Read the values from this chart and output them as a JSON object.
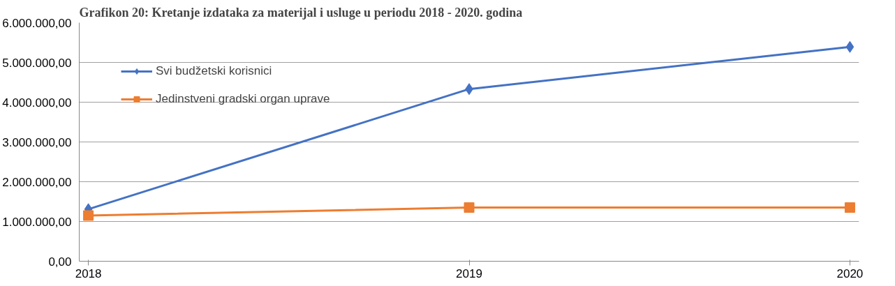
{
  "chart_data": {
    "type": "line",
    "title": "Grafikon 20: Kretanje izdataka za materijal i usluge u periodu 2018 - 2020. godina",
    "categories": [
      "2018",
      "2019",
      "2020"
    ],
    "series": [
      {
        "name": "Svi budžetski korisnici",
        "color": "#4472c4",
        "marker": "diamond",
        "values": [
          1310000,
          4330000,
          5390000
        ]
      },
      {
        "name": "Jedinstveni gradski organ uprave",
        "color": "#ed7d31",
        "marker": "square",
        "values": [
          1150000,
          1350000,
          1350000
        ]
      }
    ],
    "ylim": [
      0,
      6000000
    ],
    "yticks": [
      {
        "value": 0,
        "label": "0,00"
      },
      {
        "value": 1000000,
        "label": "1.000.000,00"
      },
      {
        "value": 2000000,
        "label": "2.000.000,00"
      },
      {
        "value": 3000000,
        "label": "3.000.000,00"
      },
      {
        "value": 4000000,
        "label": "4.000.000,00"
      },
      {
        "value": 5000000,
        "label": "5.000.000,00"
      },
      {
        "value": 6000000,
        "label": "6.000.000,00"
      }
    ],
    "grid": "y",
    "legend": "top left",
    "line_style": "solid"
  }
}
